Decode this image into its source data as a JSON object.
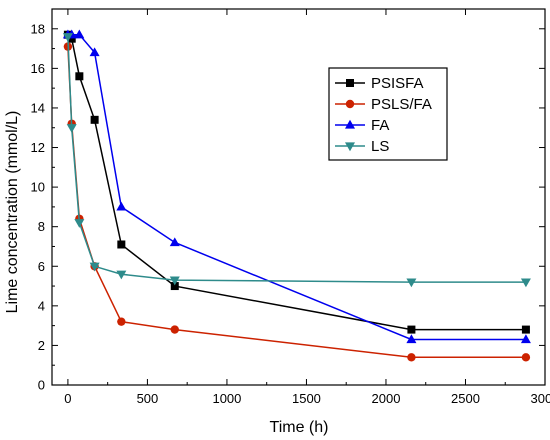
{
  "chart_data": {
    "type": "line",
    "xlabel": "Time (h)",
    "ylabel": "Lime concentration (mmol/L)",
    "xlim": [
      -100,
      3000
    ],
    "ylim": [
      0,
      19
    ],
    "xticks": [
      0,
      500,
      1000,
      1500,
      2000,
      2500,
      3000
    ],
    "yticks": [
      0,
      2,
      4,
      6,
      8,
      10,
      12,
      14,
      16,
      18
    ],
    "grid": false,
    "legend_position": "top-right",
    "series": [
      {
        "name": "PSISFA",
        "color": "#000000",
        "marker": "square",
        "x": [
          0,
          24,
          72,
          168,
          336,
          672,
          2160,
          2880
        ],
        "y": [
          17.7,
          17.5,
          15.6,
          13.4,
          7.1,
          5.0,
          2.8,
          2.8
        ]
      },
      {
        "name": "PSLS/FA",
        "color": "#cc2200",
        "marker": "circle",
        "x": [
          0,
          24,
          72,
          168,
          336,
          672,
          2160,
          2880
        ],
        "y": [
          17.1,
          13.2,
          8.4,
          6.0,
          3.2,
          2.8,
          1.4,
          1.4
        ]
      },
      {
        "name": "FA",
        "color": "#0000ee",
        "marker": "triangle-up",
        "x": [
          0,
          24,
          72,
          168,
          336,
          672,
          2160,
          2880
        ],
        "y": [
          17.7,
          17.7,
          17.7,
          16.8,
          9.0,
          7.2,
          2.3,
          2.3
        ]
      },
      {
        "name": "LS",
        "color": "#2e8b8b",
        "marker": "triangle-down",
        "x": [
          0,
          24,
          72,
          168,
          336,
          672,
          2160,
          2880
        ],
        "y": [
          17.6,
          13.0,
          8.2,
          6.0,
          5.6,
          5.3,
          5.2,
          5.2
        ]
      }
    ]
  }
}
